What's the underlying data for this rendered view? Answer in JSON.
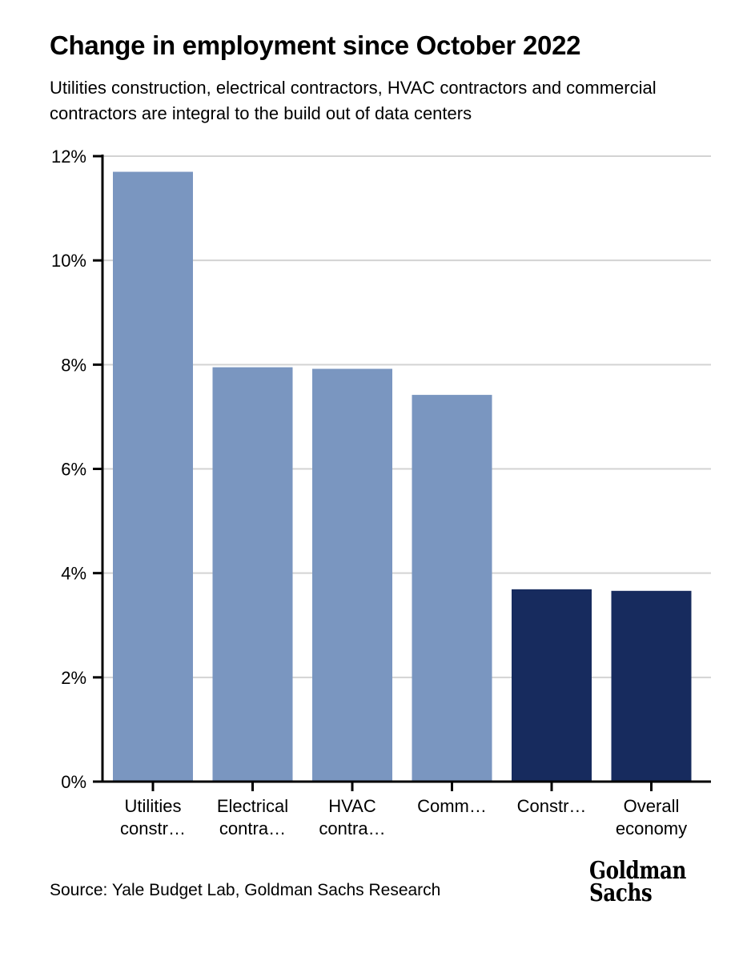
{
  "chart_data": {
    "type": "bar",
    "title": "Change in employment since October 2022",
    "subtitle": "Utilities construction, electrical contractors, HVAC contractors and commercial contractors are integral to the build out of data centers",
    "xlabel": "",
    "ylabel": "",
    "categories": [
      [
        "Utilities",
        "constr…"
      ],
      [
        "Electrical",
        "contra…"
      ],
      [
        "HVAC",
        "contra…"
      ],
      [
        "Comm…"
      ],
      [
        "Constr…"
      ],
      [
        "Overall",
        "economy"
      ]
    ],
    "values": [
      11.7,
      7.95,
      7.92,
      7.42,
      3.69,
      3.66
    ],
    "bar_colors": [
      "#7a96c0",
      "#7a96c0",
      "#7a96c0",
      "#7a96c0",
      "#172b5e",
      "#172b5e"
    ],
    "ylim": [
      0,
      12
    ],
    "yticks": [
      0,
      2,
      4,
      6,
      8,
      10,
      12
    ],
    "ytick_labels": [
      "0%",
      "2%",
      "4%",
      "6%",
      "8%",
      "10%",
      "12%"
    ],
    "grid": true,
    "grid_color": "#d3d3d3",
    "legend": "none",
    "source": "Source: Yale Budget Lab, Goldman Sachs Research"
  },
  "branding": {
    "logo_lines": [
      "Goldman",
      "Sachs"
    ]
  }
}
